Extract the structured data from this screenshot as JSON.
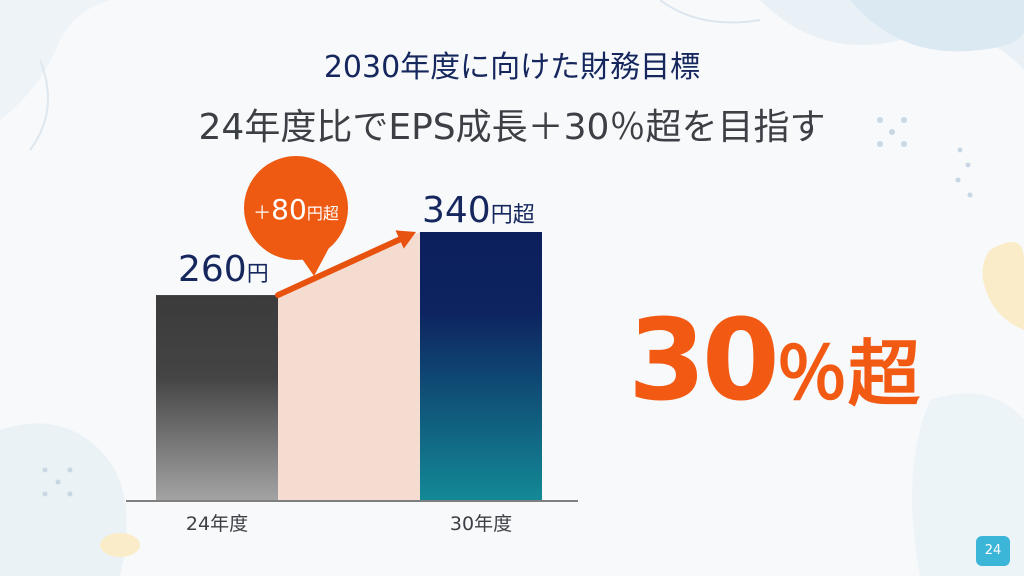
{
  "slide": {
    "title": "2030年度に向けた財務目標",
    "subtitle": "24年度比でEPS成長＋30％超を目指す",
    "highlight": {
      "value": "30",
      "unit": "％超"
    },
    "page_number": "24"
  },
  "colors": {
    "navy": "#16275e",
    "orange": "#f25a14",
    "peach": "#f5dcd0",
    "bar_gray_top": "#3b3b3b",
    "bar_gray_bottom": "#a3a3a3",
    "bar_target_top": "#0b1f5c",
    "bar_target_bottom": "#138996",
    "page_badge": "#3bb5d8"
  },
  "chart_data": {
    "type": "bar",
    "categories": [
      "24年度",
      "30年度"
    ],
    "values": [
      260,
      340
    ],
    "value_labels": [
      {
        "num": "260",
        "unit": "円"
      },
      {
        "num": "340",
        "unit": "円超"
      }
    ],
    "growth_callout": {
      "prefix": "＋",
      "num": "80",
      "unit": "円超"
    },
    "ylim": [
      0,
      340
    ]
  }
}
